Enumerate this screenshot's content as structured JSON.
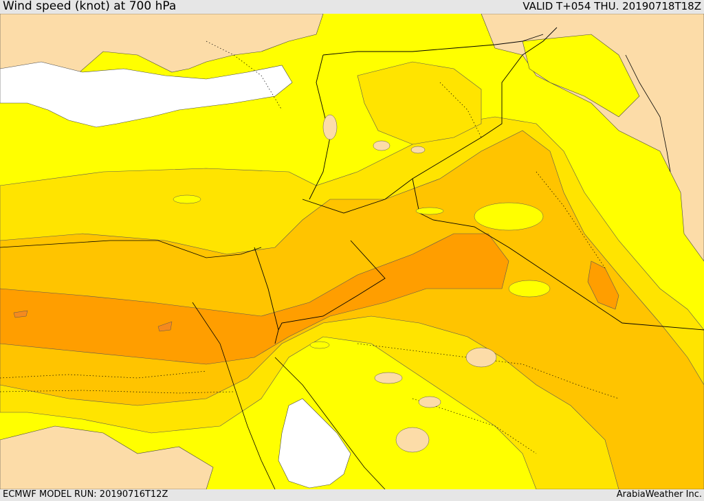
{
  "header": {
    "title": "Wind speed (knot) at 700 hPa",
    "valid": "VALID T+054 THU. 20190718T18Z"
  },
  "footer": {
    "model_run": "ECMWF MODEL RUN: 20190716T12Z",
    "credit": "ArabiaWeather Inc."
  },
  "colors": {
    "land_low": "#fcdca8",
    "band_1": "#ffff00",
    "band_2": "#ffe400",
    "band_3": "#ffc400",
    "band_4": "#ff9e00",
    "band_5": "#f58a1e",
    "water": "#ffffff",
    "border": "#000000"
  }
}
